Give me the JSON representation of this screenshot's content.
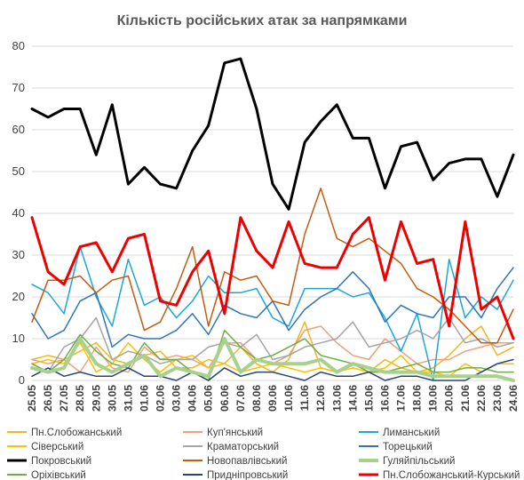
{
  "chart_data": {
    "type": "line",
    "title": "Кількість російських атак за напрямками",
    "xlabel": "",
    "ylabel": "",
    "ylim": [
      0,
      80
    ],
    "yticks": [
      0,
      10,
      20,
      30,
      40,
      50,
      60,
      70,
      80
    ],
    "grid": true,
    "legend_placement": "bottom",
    "categories": [
      "25.05",
      "26.05",
      "27.05",
      "28.05",
      "29.05",
      "30.05",
      "31.05",
      "01.06",
      "02.06",
      "03.06",
      "04.06",
      "05.06",
      "06.06",
      "07.06",
      "08.06",
      "09.06",
      "10.06",
      "11.06",
      "12.06",
      "13.06",
      "14.06",
      "15.06",
      "16.06",
      "17.06",
      "18.06",
      "19.06",
      "20.06",
      "21.06",
      "22.06",
      "23.06",
      "24.06"
    ],
    "series": [
      {
        "name": "Пн.Слобожанський",
        "color": "#f2b61f",
        "width": 1.5,
        "values": [
          5,
          6,
          5,
          7,
          9,
          5,
          4,
          6,
          7,
          3,
          3,
          5,
          4,
          8,
          4,
          2,
          5,
          14,
          3,
          2,
          4,
          2,
          5,
          3,
          2,
          3,
          6,
          10,
          13,
          6,
          8
        ]
      },
      {
        "name": "Куп'янський",
        "color": "#f0a07a",
        "width": 1.5,
        "values": [
          5,
          4,
          5,
          2,
          8,
          3,
          2,
          8,
          5,
          6,
          5,
          3,
          9,
          9,
          5,
          4,
          6,
          12,
          13,
          9,
          6,
          5,
          10,
          7,
          4,
          5,
          5,
          7,
          8,
          9,
          9
        ]
      },
      {
        "name": "Лиманський",
        "color": "#19a8d8",
        "width": 1.5,
        "values": [
          23,
          21,
          16,
          32,
          20,
          13,
          29,
          18,
          20,
          15,
          19,
          25,
          21,
          21,
          22,
          15,
          13,
          22,
          22,
          22,
          20,
          21,
          15,
          7,
          16,
          0,
          29,
          15,
          20,
          17,
          24
        ]
      },
      {
        "name": "Сіверський",
        "color": "#ffc000",
        "width": 1.5,
        "values": [
          4,
          5,
          4,
          9,
          2,
          4,
          9,
          5,
          2,
          5,
          6,
          3,
          4,
          2,
          3,
          4,
          3,
          2,
          3,
          2,
          3,
          2,
          3,
          6,
          2,
          2,
          1,
          4,
          2,
          4,
          4
        ]
      },
      {
        "name": "Краматорський",
        "color": "#a5a5a5",
        "width": 1.5,
        "values": [
          4,
          2,
          8,
          10,
          15,
          5,
          7,
          6,
          4,
          5,
          5,
          8,
          9,
          8,
          11,
          5,
          6,
          8,
          9,
          10,
          14,
          8,
          9,
          10,
          12,
          10,
          15,
          9,
          10,
          8,
          9
        ]
      },
      {
        "name": "Торецький",
        "color": "#2e75b6",
        "width": 1.5,
        "values": [
          16,
          10,
          12,
          19,
          21,
          8,
          11,
          10,
          10,
          12,
          16,
          11,
          18,
          16,
          15,
          19,
          12,
          17,
          20,
          22,
          26,
          22,
          14,
          18,
          16,
          15,
          20,
          20,
          15,
          22,
          27
        ]
      },
      {
        "name": "Покровський",
        "color": "#000000",
        "width": 3,
        "values": [
          65,
          63,
          65,
          65,
          54,
          66,
          47,
          51,
          47,
          46,
          55,
          61,
          76,
          77,
          65,
          47,
          41,
          57,
          62,
          66,
          58,
          58,
          46,
          56,
          57,
          48,
          52,
          53,
          53,
          44,
          54
        ]
      },
      {
        "name": "Новопавлівський",
        "color": "#c55a11",
        "width": 1.5,
        "values": [
          14,
          24,
          24,
          25,
          21,
          24,
          25,
          12,
          14,
          22,
          32,
          13,
          26,
          24,
          25,
          19,
          18,
          35,
          46,
          34,
          32,
          34,
          31,
          28,
          22,
          20,
          17,
          13,
          9,
          9,
          17
        ]
      },
      {
        "name": "Гуляйпільський",
        "color": "#a9d18e",
        "width": 4,
        "values": [
          3,
          2,
          3,
          10,
          4,
          2,
          4,
          6,
          1,
          3,
          2,
          1,
          10,
          2,
          5,
          4,
          4,
          4,
          5,
          2,
          4,
          3,
          2,
          2,
          2,
          1,
          1,
          1,
          1,
          1,
          0
        ]
      },
      {
        "name": "Оріхівський",
        "color": "#70ad47",
        "width": 1.5,
        "values": [
          4,
          2,
          5,
          11,
          7,
          4,
          3,
          9,
          5,
          5,
          2,
          0,
          12,
          8,
          5,
          6,
          8,
          10,
          6,
          5,
          4,
          2,
          2,
          3,
          4,
          2,
          2,
          3,
          3,
          2,
          2
        ]
      },
      {
        "name": "Придніпровський",
        "color": "#264478",
        "width": 1.5,
        "values": [
          1,
          3,
          1,
          2,
          1,
          1,
          3,
          1,
          1,
          0,
          2,
          0,
          3,
          1,
          2,
          2,
          1,
          0,
          2,
          1,
          1,
          2,
          0,
          1,
          1,
          0,
          0,
          0,
          2,
          4,
          5
        ]
      },
      {
        "name": "Пн.Слобожанський-Курський",
        "color": "#ee0000",
        "width": 3,
        "values": [
          39,
          26,
          23,
          32,
          33,
          26,
          34,
          35,
          19,
          18,
          26,
          31,
          16,
          39,
          31,
          27,
          38,
          28,
          27,
          27,
          35,
          39,
          24,
          38,
          28,
          29,
          13,
          38,
          17,
          20,
          10
        ]
      }
    ]
  }
}
